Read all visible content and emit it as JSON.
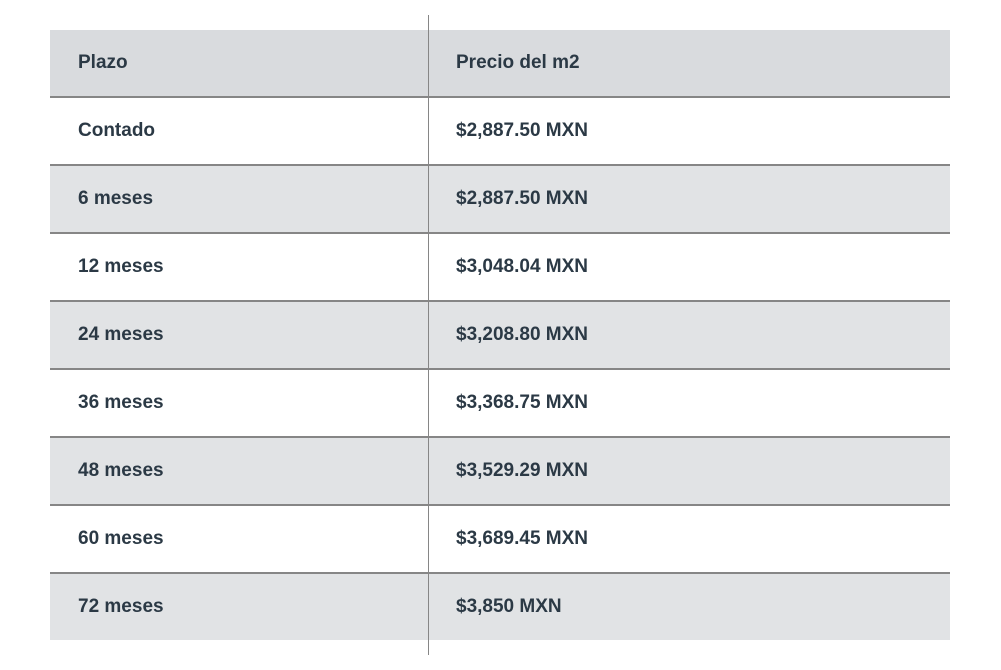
{
  "table": {
    "type": "table",
    "columns": [
      "Plazo",
      "Precio del m2"
    ],
    "column_widths": [
      "42%",
      "58%"
    ],
    "rows": [
      [
        "Contado",
        "$2,887.50 MXN"
      ],
      [
        "6 meses",
        "$2,887.50 MXN"
      ],
      [
        "12 meses",
        "$3,048.04 MXN"
      ],
      [
        "24 meses",
        "$3,208.80 MXN"
      ],
      [
        "36 meses",
        "$3,368.75 MXN"
      ],
      [
        "48 meses",
        "$3,529.29 MXN"
      ],
      [
        "60 meses",
        "$3,689.45  MXN"
      ],
      [
        "72 meses",
        "$3,850 MXN"
      ]
    ],
    "header_bg_color": "#d9dbde",
    "row_white_bg": "#ffffff",
    "row_gray_bg": "#e1e3e5",
    "border_color": "#868686",
    "text_color": "#2b3945",
    "font_size": 19,
    "header_font_weight": 700,
    "cell_font_weight": 600,
    "cell_padding": "22px 28px"
  }
}
